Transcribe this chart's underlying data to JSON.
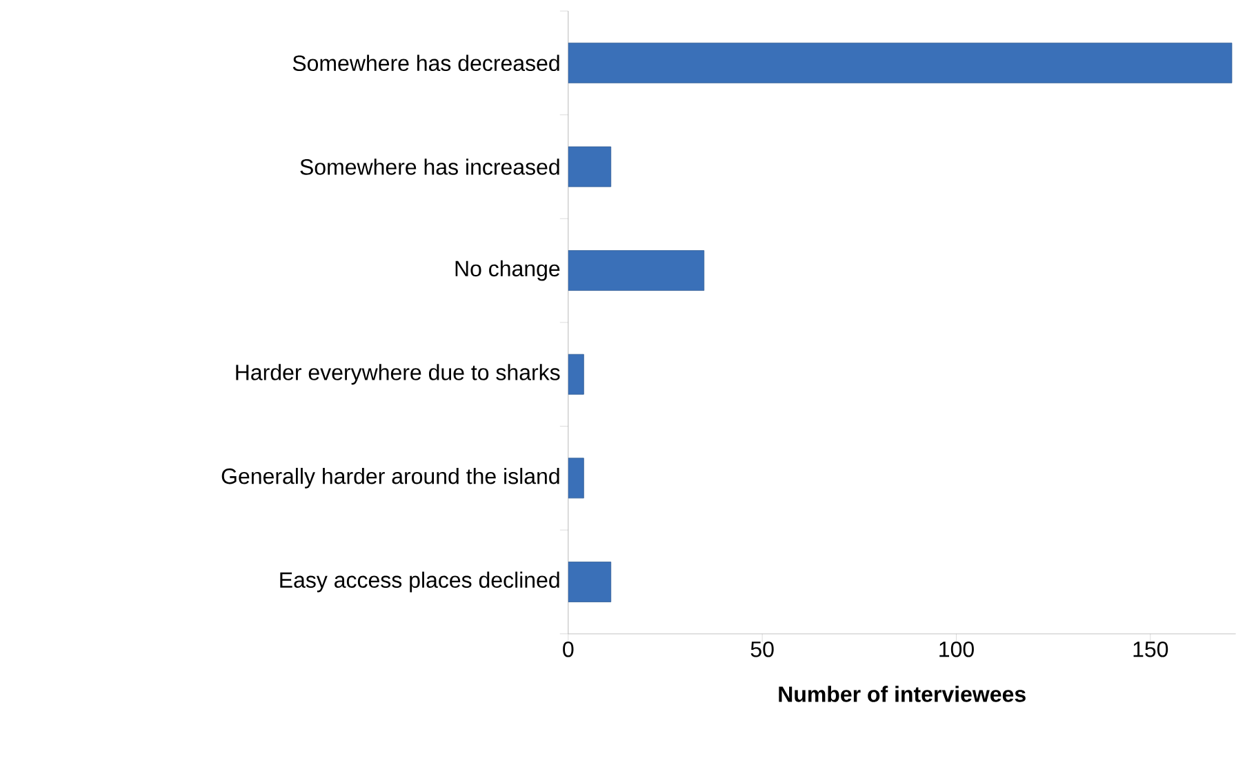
{
  "chart_data": {
    "type": "bar",
    "orientation": "horizontal",
    "categories": [
      "Somewhere has decreased",
      "Somewhere has increased",
      "No change",
      "Harder everywhere due to sharks",
      "Generally harder around the island",
      "Easy access places declined"
    ],
    "values": [
      171,
      11,
      35,
      4,
      4,
      11
    ],
    "color": "#3a70b8",
    "xlim": [
      0,
      172
    ],
    "xticks": [
      0,
      50,
      100,
      150
    ],
    "xlabel": "Number of interviewees"
  }
}
